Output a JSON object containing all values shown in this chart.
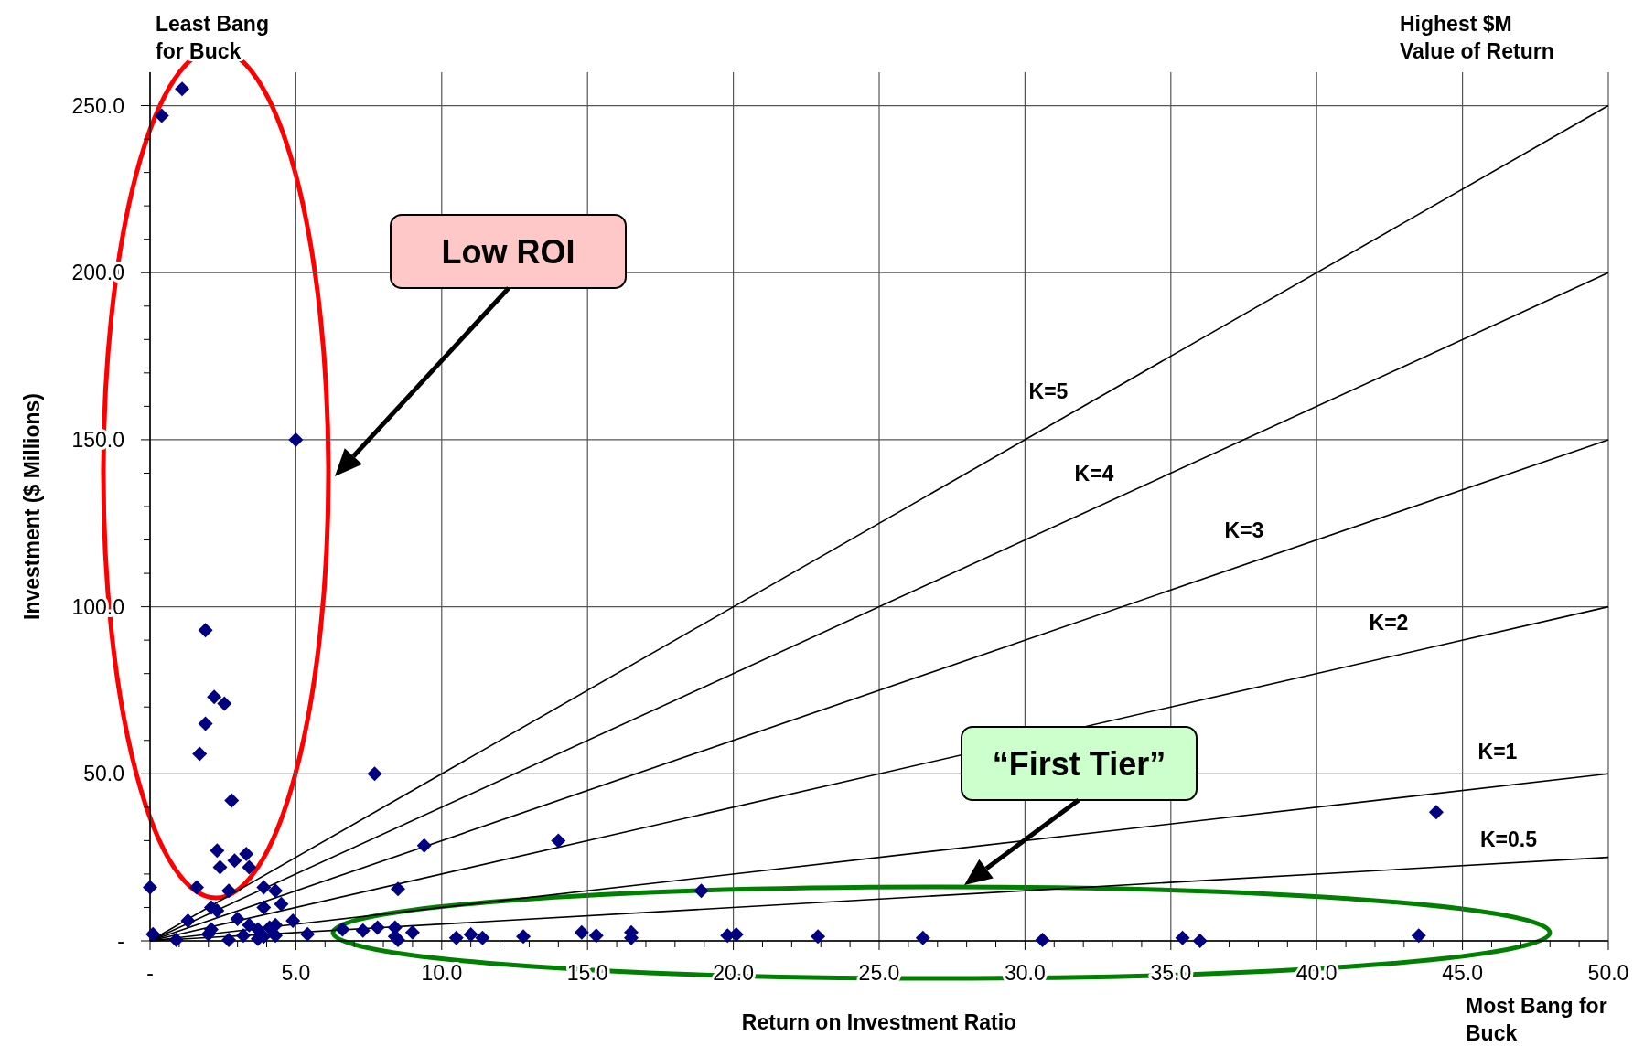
{
  "chart_data": {
    "type": "scatter",
    "xlabel": "Return on Investment Ratio",
    "ylabel": "Investment ($ Millions)",
    "xlim": [
      0,
      50
    ],
    "ylim": [
      0,
      260
    ],
    "xticks": [
      {
        "value": 0,
        "label": "-"
      },
      {
        "value": 1,
        "label": null
      },
      {
        "value": 2,
        "label": null
      },
      {
        "value": 3,
        "label": null
      },
      {
        "value": 4,
        "label": null
      },
      {
        "value": 5,
        "label": "5.0"
      },
      {
        "value": 6,
        "label": null
      },
      {
        "value": 7,
        "label": null
      },
      {
        "value": 8,
        "label": null
      },
      {
        "value": 9,
        "label": null
      },
      {
        "value": 10,
        "label": "10.0"
      },
      {
        "value": 11,
        "label": null
      },
      {
        "value": 12,
        "label": null
      },
      {
        "value": 13,
        "label": null
      },
      {
        "value": 14,
        "label": null
      },
      {
        "value": 15,
        "label": "15.0"
      },
      {
        "value": 16,
        "label": null
      },
      {
        "value": 17,
        "label": null
      },
      {
        "value": 18,
        "label": null
      },
      {
        "value": 19,
        "label": null
      },
      {
        "value": 20,
        "label": "20.0"
      },
      {
        "value": 21,
        "label": null
      },
      {
        "value": 22,
        "label": null
      },
      {
        "value": 23,
        "label": null
      },
      {
        "value": 24,
        "label": null
      },
      {
        "value": 25,
        "label": "25.0"
      },
      {
        "value": 26,
        "label": null
      },
      {
        "value": 27,
        "label": null
      },
      {
        "value": 28,
        "label": null
      },
      {
        "value": 29,
        "label": null
      },
      {
        "value": 30,
        "label": "30.0"
      },
      {
        "value": 31,
        "label": null
      },
      {
        "value": 32,
        "label": null
      },
      {
        "value": 33,
        "label": null
      },
      {
        "value": 34,
        "label": null
      },
      {
        "value": 35,
        "label": "35.0"
      },
      {
        "value": 36,
        "label": null
      },
      {
        "value": 37,
        "label": null
      },
      {
        "value": 38,
        "label": null
      },
      {
        "value": 39,
        "label": null
      },
      {
        "value": 40,
        "label": "40.0"
      },
      {
        "value": 41,
        "label": null
      },
      {
        "value": 42,
        "label": null
      },
      {
        "value": 43,
        "label": null
      },
      {
        "value": 44,
        "label": null
      },
      {
        "value": 45,
        "label": "45.0"
      },
      {
        "value": 46,
        "label": null
      },
      {
        "value": 47,
        "label": null
      },
      {
        "value": 48,
        "label": null
      },
      {
        "value": 49,
        "label": null
      },
      {
        "value": 50,
        "label": "50.0"
      }
    ],
    "yticks": [
      {
        "value": 0,
        "label": "-"
      },
      {
        "value": 10,
        "label": null
      },
      {
        "value": 20,
        "label": null
      },
      {
        "value": 30,
        "label": null
      },
      {
        "value": 40,
        "label": null
      },
      {
        "value": 50,
        "label": "50.0"
      },
      {
        "value": 60,
        "label": null
      },
      {
        "value": 70,
        "label": null
      },
      {
        "value": 80,
        "label": null
      },
      {
        "value": 90,
        "label": null
      },
      {
        "value": 100,
        "label": "100.0"
      },
      {
        "value": 110,
        "label": null
      },
      {
        "value": 120,
        "label": null
      },
      {
        "value": 130,
        "label": null
      },
      {
        "value": 140,
        "label": null
      },
      {
        "value": 150,
        "label": "150.0"
      },
      {
        "value": 160,
        "label": null
      },
      {
        "value": 170,
        "label": null
      },
      {
        "value": 180,
        "label": null
      },
      {
        "value": 190,
        "label": null
      },
      {
        "value": 200,
        "label": "200.0"
      },
      {
        "value": 210,
        "label": null
      },
      {
        "value": 220,
        "label": null
      },
      {
        "value": 230,
        "label": null
      },
      {
        "value": 240,
        "label": null
      },
      {
        "value": 250,
        "label": "250.0"
      }
    ],
    "grid": true,
    "series": [
      {
        "type": "line",
        "name": "K=5",
        "marker": "none",
        "color": "#000000",
        "x": [
          0,
          50
        ],
        "values": [
          0,
          250
        ]
      },
      {
        "type": "line",
        "name": "K=4",
        "marker": "none",
        "color": "#000000",
        "x": [
          0,
          50
        ],
        "values": [
          0,
          200
        ]
      },
      {
        "type": "line",
        "name": "K=3",
        "marker": "none",
        "color": "#000000",
        "x": [
          0,
          50
        ],
        "values": [
          0,
          150
        ]
      },
      {
        "type": "line",
        "name": "K=2",
        "marker": "none",
        "color": "#000000",
        "x": [
          0,
          50
        ],
        "values": [
          0,
          100
        ]
      },
      {
        "type": "line",
        "name": "K=1",
        "marker": "none",
        "color": "#000000",
        "x": [
          0,
          50
        ],
        "values": [
          0,
          50
        ]
      },
      {
        "type": "line",
        "name": "K=0.5",
        "marker": "none",
        "color": "#000000",
        "x": [
          0,
          50
        ],
        "values": [
          0,
          25
        ]
      },
      {
        "marker": "diamond",
        "color": "#000080",
        "x": [
          0.4,
          1.1,
          5.0,
          1.9,
          2.2,
          2.55,
          1.9,
          1.7,
          2.8,
          7.7,
          2.3,
          3.3,
          2.4,
          3.4,
          2.9,
          0,
          1.6,
          2.7,
          3.9,
          4.3,
          4.5,
          3.9,
          2.1,
          2.3,
          1.3,
          0.1,
          0.9,
          2.0,
          2.1,
          2.7,
          3.0,
          3.4,
          3.7,
          4.1,
          4.3,
          3.7,
          3.2,
          3.9,
          4.3,
          4.9,
          5.4,
          9.4,
          14.0,
          18.9,
          8.5,
          44.1,
          6.6,
          7.3,
          7.8,
          8.4,
          8.4,
          8.5,
          9.0,
          10.5,
          11.0,
          11.4,
          12.8,
          14.8,
          15.3,
          16.5,
          16.5,
          19.8,
          20.1,
          22.9,
          26.5,
          30.6,
          35.4,
          36.0,
          43.5
        ],
        "values": [
          247,
          255,
          150,
          93,
          73,
          71,
          65,
          56,
          42,
          50,
          27,
          26,
          22,
          22,
          24,
          16,
          16,
          15,
          16,
          15,
          11,
          10,
          10,
          9,
          6,
          2,
          0.3,
          2,
          3.4,
          0.3,
          6.6,
          4.7,
          3.4,
          4,
          4.7,
          0.6,
          1.6,
          1.3,
          1.6,
          6,
          2,
          28.5,
          30,
          15,
          15.5,
          38.5,
          3.4,
          3.1,
          4,
          4,
          1.3,
          0.3,
          2.5,
          0.9,
          1.9,
          0.9,
          1.3,
          2.5,
          1.6,
          2.5,
          0.9,
          1.6,
          1.9,
          1.3,
          0.9,
          0.3,
          0.9,
          0,
          1.6
        ]
      }
    ],
    "annotations": [
      "Least Bang\nfor Buck",
      "Highest $M\nValue of Return",
      "Most Bang for\nBuck",
      "Low ROI",
      "“First Tier”"
    ]
  }
}
